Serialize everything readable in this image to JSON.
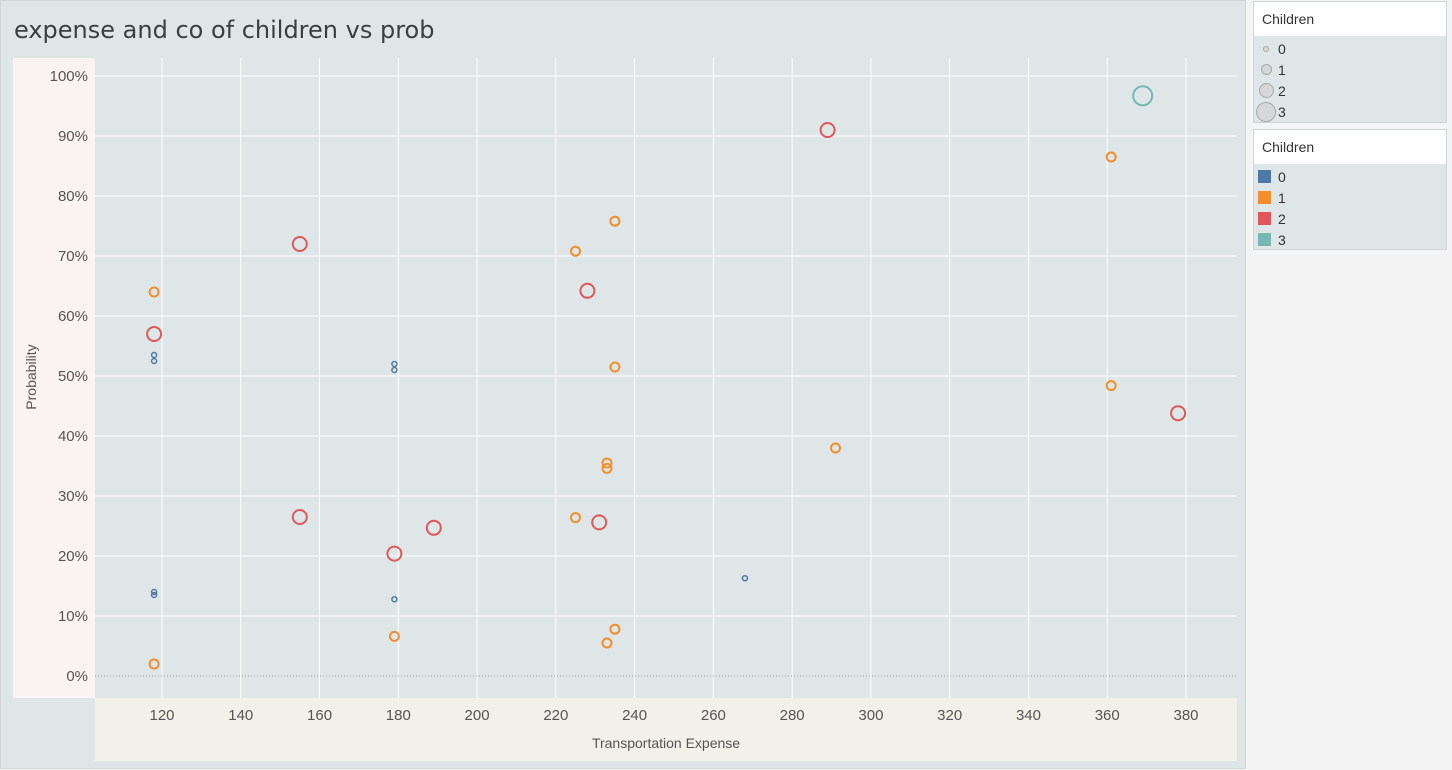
{
  "title": "expense and co of children vs prob",
  "legend_size": {
    "title": "Children",
    "items": [
      {
        "label": "0",
        "value": 0
      },
      {
        "label": "1",
        "value": 1
      },
      {
        "label": "2",
        "value": 2
      },
      {
        "label": "3",
        "value": 3
      }
    ]
  },
  "legend_color": {
    "title": "Children",
    "items": [
      {
        "label": "0",
        "color": "#4e79a7"
      },
      {
        "label": "1",
        "color": "#f28e2b"
      },
      {
        "label": "2",
        "color": "#e15759"
      },
      {
        "label": "3",
        "color": "#76b7b2"
      }
    ]
  },
  "chart_data": {
    "type": "scatter",
    "title": "expense and co of children vs prob",
    "xlabel": "Transportation Expense",
    "ylabel": "Probability",
    "xlim": [
      110,
      390
    ],
    "ylim": [
      0,
      1
    ],
    "x_ticks": [
      120,
      140,
      160,
      180,
      200,
      220,
      240,
      260,
      280,
      300,
      320,
      340,
      360,
      380
    ],
    "x_tick_labels": [
      "120",
      "140",
      "160",
      "180",
      "200",
      "220",
      "240",
      "260",
      "280",
      "300",
      "320",
      "340",
      "360",
      "380"
    ],
    "y_ticks": [
      0,
      0.1,
      0.2,
      0.3,
      0.4,
      0.5,
      0.6,
      0.7,
      0.8,
      0.9,
      1.0
    ],
    "y_tick_labels": [
      "0%",
      "10%",
      "20%",
      "30%",
      "40%",
      "50%",
      "60%",
      "70%",
      "80%",
      "90%",
      "100%"
    ],
    "grid": true,
    "legend_position": "right",
    "series": [
      {
        "name": "0",
        "color": "#4e79a7",
        "points": [
          [
            118,
            0.535
          ],
          [
            118,
            0.525
          ],
          [
            118,
            0.14
          ],
          [
            118,
            0.135
          ],
          [
            179,
            0.52
          ],
          [
            179,
            0.51
          ],
          [
            179,
            0.128
          ],
          [
            268,
            0.163
          ]
        ]
      },
      {
        "name": "1",
        "color": "#f28e2b",
        "points": [
          [
            118,
            0.64
          ],
          [
            118,
            0.02
          ],
          [
            179,
            0.066
          ],
          [
            225,
            0.708
          ],
          [
            225,
            0.264
          ],
          [
            235,
            0.758
          ],
          [
            235,
            0.515
          ],
          [
            235,
            0.078
          ],
          [
            233,
            0.355
          ],
          [
            233,
            0.346
          ],
          [
            233,
            0.055
          ],
          [
            291,
            0.38
          ],
          [
            361,
            0.865
          ],
          [
            361,
            0.484
          ]
        ]
      },
      {
        "name": "2",
        "color": "#e15759",
        "points": [
          [
            118,
            0.57
          ],
          [
            155,
            0.72
          ],
          [
            155,
            0.265
          ],
          [
            179,
            0.204
          ],
          [
            189,
            0.247
          ],
          [
            228,
            0.642
          ],
          [
            231,
            0.256
          ],
          [
            289,
            0.91
          ],
          [
            378,
            0.438
          ]
        ]
      },
      {
        "name": "3",
        "color": "#76b7b2",
        "points": [
          [
            369,
            0.967
          ]
        ]
      }
    ]
  }
}
